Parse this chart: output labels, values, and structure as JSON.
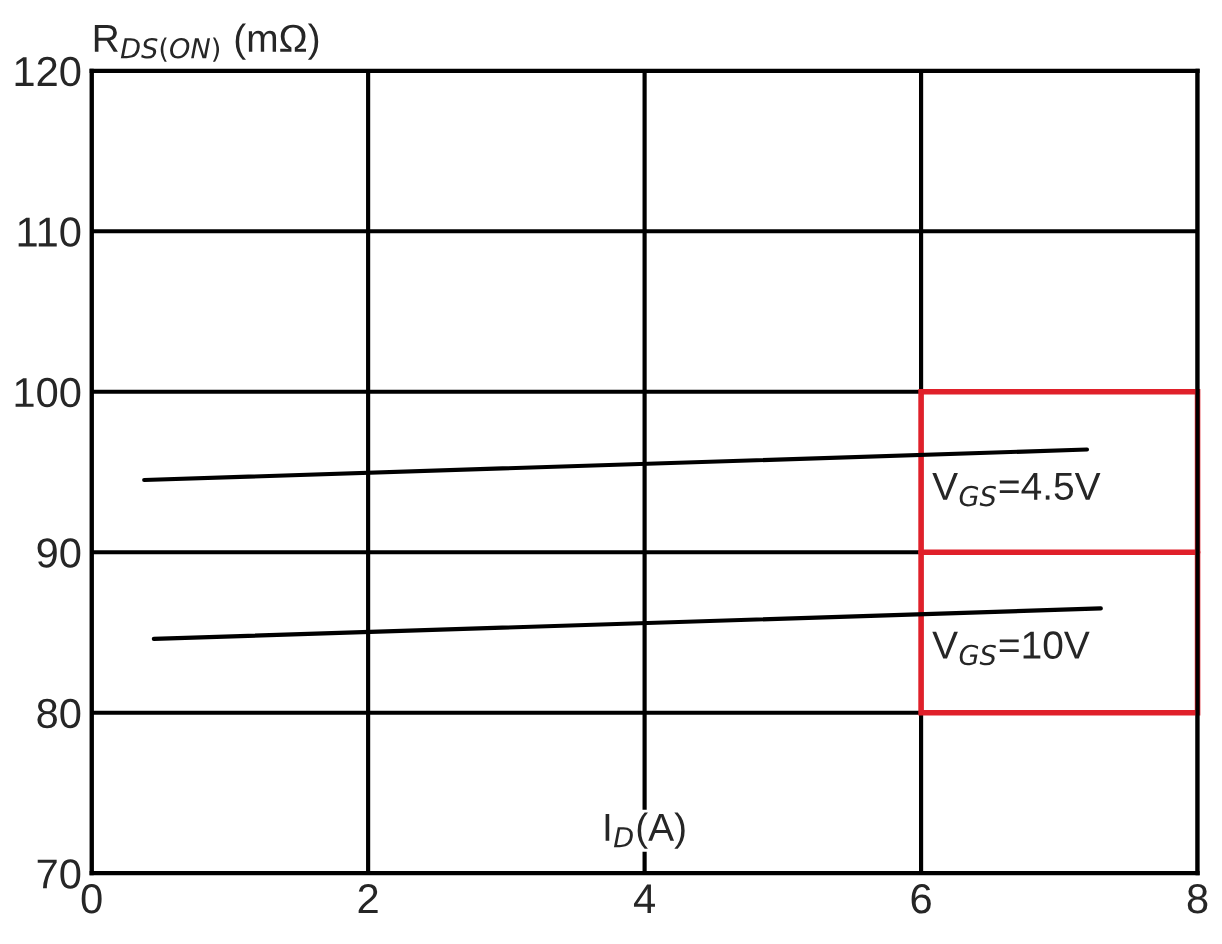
{
  "chart_data": {
    "type": "line",
    "ylabel": "R$_{DS(ON)}$ (mΩ)",
    "xlabel": "I$_{D}$(A)",
    "series": [
      {
        "name": "V$_{GS}$=4.5V",
        "color": "#000000",
        "x": [
          0.38,
          7.2
        ],
        "values": [
          94.5,
          96.4
        ]
      },
      {
        "name": "V$_{GS}$=10V",
        "color": "#000000",
        "x": [
          0.45,
          7.3
        ],
        "values": [
          84.6,
          86.5
        ]
      }
    ],
    "xlim": [
      0,
      8
    ],
    "xticks": [
      0,
      2,
      4,
      6,
      8
    ],
    "ylim": [
      70,
      120
    ],
    "yticks": [
      70,
      80,
      90,
      100,
      110,
      120
    ],
    "grid": true,
    "legend": false,
    "marker": "none",
    "line_style": "solid"
  }
}
